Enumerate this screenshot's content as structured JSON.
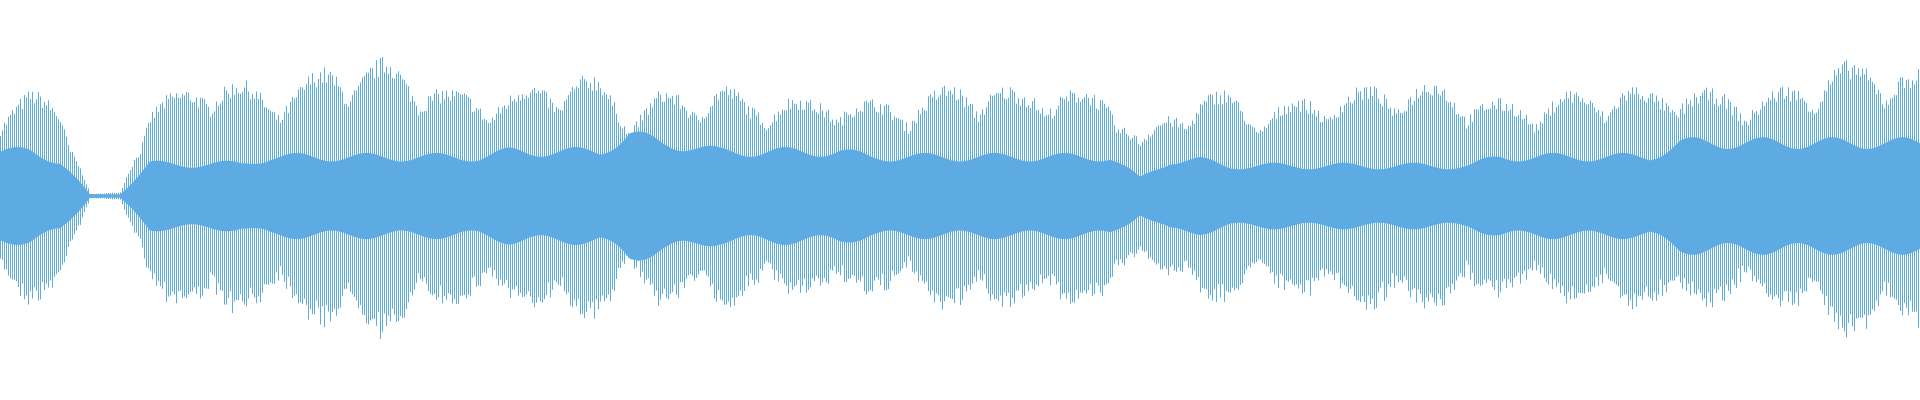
{
  "chart_data": {
    "type": "area",
    "title": "",
    "xlabel": "",
    "ylabel": "",
    "color": "#5DABE2",
    "ylim": [
      -1,
      1
    ],
    "grid": false,
    "envelope_peak": [
      0.5,
      0.55,
      0.5,
      0.01,
      0.02,
      0.5,
      0.55,
      0.65,
      0.6,
      0.55,
      0.6,
      0.7,
      0.7,
      0.72,
      0.65,
      0.55,
      0.55,
      0.55,
      0.6,
      0.65,
      0.62,
      0.45,
      0.55,
      0.55,
      0.6,
      0.5,
      0.55,
      0.5,
      0.55,
      0.5,
      0.5,
      0.55,
      0.6,
      0.6,
      0.55,
      0.6,
      0.55,
      0.55,
      0.3,
      0.45,
      0.55,
      0.55,
      0.45,
      0.5,
      0.55,
      0.55,
      0.6,
      0.6,
      0.6,
      0.55,
      0.5,
      0.5,
      0.55,
      0.55,
      0.6,
      0.55,
      0.6,
      0.55,
      0.55,
      0.55,
      0.6,
      0.7,
      0.7,
      0.7,
      0.65
    ],
    "envelope_rms": [
      0.25,
      0.25,
      0.2,
      0.01,
      0.01,
      0.18,
      0.18,
      0.18,
      0.18,
      0.22,
      0.22,
      0.22,
      0.22,
      0.22,
      0.22,
      0.22,
      0.22,
      0.25,
      0.25,
      0.25,
      0.25,
      0.35,
      0.3,
      0.28,
      0.25,
      0.25,
      0.25,
      0.25,
      0.25,
      0.22,
      0.22,
      0.22,
      0.22,
      0.22,
      0.22,
      0.22,
      0.22,
      0.22,
      0.1,
      0.2,
      0.2,
      0.17,
      0.17,
      0.17,
      0.17,
      0.17,
      0.17,
      0.17,
      0.17,
      0.17,
      0.22,
      0.22,
      0.22,
      0.22,
      0.22,
      0.22,
      0.3,
      0.3,
      0.3,
      0.3,
      0.3,
      0.3,
      0.3,
      0.3,
      0.3
    ]
  }
}
